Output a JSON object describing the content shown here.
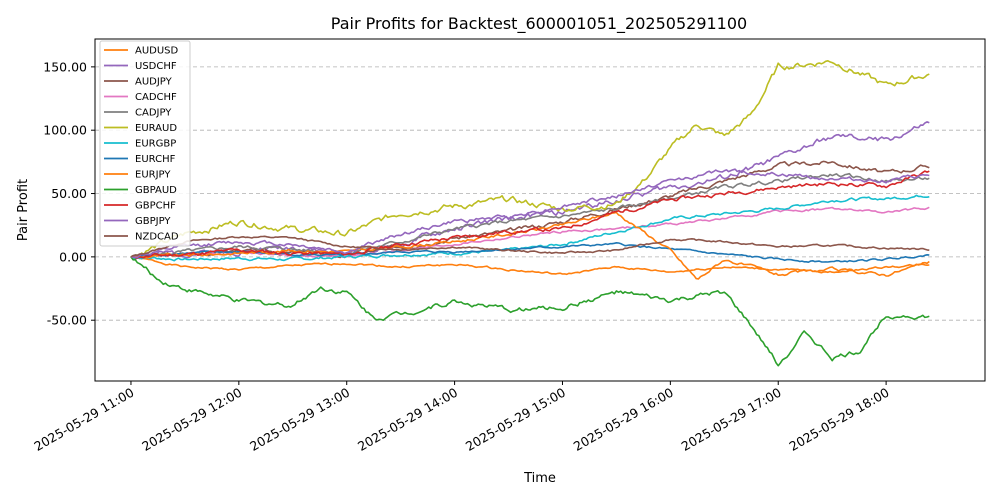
{
  "chart_data": {
    "type": "line",
    "title": "Pair Profits for Backtest_600001051_202505291100",
    "xlabel": "Time",
    "ylabel": "Pair Profit",
    "x_range": [
      "2025-05-29 10:40",
      "2025-05-29 18:55"
    ],
    "ylim": [
      -98,
      172
    ],
    "y_ticks": [
      -50,
      0,
      50,
      100,
      150
    ],
    "y_tick_labels": [
      "-50.00",
      "0.00",
      "50.00",
      "100.00",
      "150.00"
    ],
    "x_ticks": [
      "2025-05-29 11:00",
      "2025-05-29 12:00",
      "2025-05-29 13:00",
      "2025-05-29 14:00",
      "2025-05-29 15:00",
      "2025-05-29 16:00",
      "2025-05-29 17:00",
      "2025-05-29 18:00"
    ],
    "x_tick_labels": [
      "2025-05-29 11:00",
      "2025-05-29 12:00",
      "2025-05-29 13:00",
      "2025-05-29 14:00",
      "2025-05-29 15:00",
      "2025-05-29 16:00",
      "2025-05-29 17:00",
      "2025-05-29 18:00"
    ],
    "grid": "y-dashed",
    "legend_position": "top-left",
    "series": [
      {
        "name": "AUDUSD",
        "color": "#ff7f0e",
        "x": [
          "11:00",
          "11:30",
          "12:00",
          "12:30",
          "13:00",
          "13:30",
          "14:00",
          "14:30",
          "15:00",
          "15:30",
          "16:00",
          "16:30",
          "17:00",
          "17:30",
          "18:00",
          "18:25"
        ],
        "values": [
          0,
          -8,
          -10,
          -7,
          -5,
          -8,
          -6,
          -10,
          -14,
          -8,
          -12,
          -8,
          -10,
          -12,
          -8,
          -6
        ]
      },
      {
        "name": "USDCHF",
        "color": "#9467bd",
        "x": [
          "11:00",
          "11:30",
          "12:00",
          "12:30",
          "13:00",
          "13:30",
          "14:00",
          "14:30",
          "15:00",
          "15:30",
          "16:00",
          "16:30",
          "17:00",
          "17:30",
          "18:00",
          "18:25"
        ],
        "values": [
          0,
          3,
          5,
          8,
          2,
          10,
          22,
          30,
          35,
          45,
          55,
          62,
          78,
          95,
          92,
          106
        ]
      },
      {
        "name": "AUDJPY",
        "color": "#8c564b",
        "x": [
          "11:00",
          "11:30",
          "12:00",
          "12:30",
          "13:00",
          "13:30",
          "14:00",
          "14:30",
          "15:00",
          "15:30",
          "16:00",
          "16:30",
          "17:00",
          "17:30",
          "18:00",
          "18:25"
        ],
        "values": [
          0,
          2,
          5,
          3,
          1,
          8,
          15,
          20,
          28,
          38,
          48,
          60,
          72,
          75,
          66,
          72
        ]
      },
      {
        "name": "CADCHF",
        "color": "#e377c2",
        "x": [
          "11:00",
          "11:30",
          "12:00",
          "12:30",
          "13:00",
          "13:30",
          "14:00",
          "14:30",
          "15:00",
          "15:30",
          "16:00",
          "16:30",
          "17:00",
          "17:30",
          "18:00",
          "18:25"
        ],
        "values": [
          0,
          2,
          4,
          1,
          0,
          5,
          10,
          15,
          20,
          22,
          26,
          30,
          36,
          38,
          35,
          39
        ]
      },
      {
        "name": "CADJPY",
        "color": "#7f7f7f",
        "x": [
          "11:00",
          "11:30",
          "12:00",
          "12:30",
          "13:00",
          "13:30",
          "14:00",
          "14:30",
          "15:00",
          "15:30",
          "16:00",
          "16:30",
          "17:00",
          "17:30",
          "18:00",
          "18:25"
        ],
        "values": [
          0,
          4,
          8,
          6,
          3,
          12,
          22,
          28,
          32,
          38,
          46,
          55,
          60,
          65,
          60,
          62
        ]
      },
      {
        "name": "EURAUD",
        "color": "#bcbd22",
        "x": [
          "11:00",
          "11:30",
          "12:00",
          "12:30",
          "13:00",
          "13:30",
          "14:00",
          "14:30",
          "15:00",
          "15:30",
          "15:45",
          "16:00",
          "16:15",
          "16:30",
          "16:45",
          "17:00",
          "17:15",
          "17:30",
          "17:45",
          "18:00",
          "18:25"
        ],
        "values": [
          0,
          18,
          28,
          22,
          18,
          35,
          40,
          45,
          38,
          42,
          60,
          85,
          105,
          95,
          112,
          150,
          152,
          155,
          145,
          135,
          145
        ]
      },
      {
        "name": "EURGBP",
        "color": "#17becf",
        "x": [
          "11:00",
          "11:30",
          "12:00",
          "12:30",
          "13:00",
          "13:30",
          "14:00",
          "14:30",
          "15:00",
          "15:30",
          "16:00",
          "16:30",
          "17:00",
          "17:30",
          "18:00",
          "18:25"
        ],
        "values": [
          0,
          -2,
          -1,
          -2,
          0,
          2,
          3,
          5,
          10,
          20,
          30,
          34,
          38,
          45,
          46,
          49
        ]
      },
      {
        "name": "EURCHF",
        "color": "#1f77b4",
        "x": [
          "11:00",
          "11:30",
          "12:00",
          "12:30",
          "13:00",
          "13:30",
          "14:00",
          "14:30",
          "15:00",
          "15:30",
          "16:00",
          "16:30",
          "17:00",
          "17:30",
          "18:00",
          "18:25"
        ],
        "values": [
          0,
          3,
          4,
          2,
          1,
          4,
          4,
          6,
          8,
          10,
          6,
          2,
          -2,
          -4,
          -2,
          2
        ]
      },
      {
        "name": "EURJPY",
        "color": "#ff7f0e",
        "x": [
          "11:00",
          "11:30",
          "12:00",
          "12:30",
          "13:00",
          "13:30",
          "14:00",
          "14:30",
          "15:00",
          "15:30",
          "16:00",
          "16:15",
          "16:30",
          "17:00",
          "17:30",
          "18:00",
          "18:25"
        ],
        "values": [
          0,
          1,
          3,
          5,
          4,
          8,
          12,
          18,
          25,
          35,
          5,
          -18,
          -2,
          -14,
          -10,
          -14,
          -4
        ]
      },
      {
        "name": "GBPAUD",
        "color": "#2ca02c",
        "x": [
          "11:00",
          "11:15",
          "11:30",
          "12:00",
          "12:30",
          "12:45",
          "13:00",
          "13:15",
          "13:30",
          "14:00",
          "14:30",
          "15:00",
          "15:30",
          "16:00",
          "16:30",
          "16:45",
          "17:00",
          "17:15",
          "17:30",
          "17:45",
          "18:00",
          "18:25"
        ],
        "values": [
          0,
          -18,
          -25,
          -35,
          -38,
          -24,
          -28,
          -48,
          -45,
          -35,
          -42,
          -40,
          -28,
          -35,
          -28,
          -55,
          -85,
          -60,
          -80,
          -75,
          -45,
          -48
        ]
      },
      {
        "name": "GBPCHF",
        "color": "#d62728",
        "x": [
          "11:00",
          "11:30",
          "12:00",
          "12:30",
          "13:00",
          "13:30",
          "14:00",
          "14:30",
          "15:00",
          "15:30",
          "16:00",
          "16:30",
          "17:00",
          "17:30",
          "18:00",
          "18:25"
        ],
        "values": [
          0,
          2,
          5,
          3,
          2,
          10,
          15,
          20,
          22,
          35,
          45,
          50,
          55,
          58,
          56,
          68
        ]
      },
      {
        "name": "GBPJPY",
        "color": "#9467bd",
        "x": [
          "11:00",
          "11:30",
          "12:00",
          "12:30",
          "13:00",
          "13:30",
          "14:00",
          "14:30",
          "15:00",
          "15:30",
          "16:00",
          "16:30",
          "17:00",
          "17:30",
          "18:00",
          "18:25"
        ],
        "values": [
          0,
          8,
          12,
          10,
          4,
          18,
          28,
          32,
          40,
          48,
          60,
          68,
          65,
          62,
          60,
          64
        ]
      },
      {
        "name": "NZDCAD",
        "color": "#8c564b",
        "x": [
          "11:00",
          "11:30",
          "12:00",
          "12:30",
          "13:00",
          "13:30",
          "14:00",
          "14:30",
          "15:00",
          "15:30",
          "16:00",
          "16:30",
          "17:00",
          "17:30",
          "18:00",
          "18:25"
        ],
        "values": [
          0,
          12,
          16,
          15,
          8,
          6,
          8,
          5,
          3,
          5,
          14,
          12,
          8,
          9,
          7,
          6
        ]
      }
    ]
  }
}
